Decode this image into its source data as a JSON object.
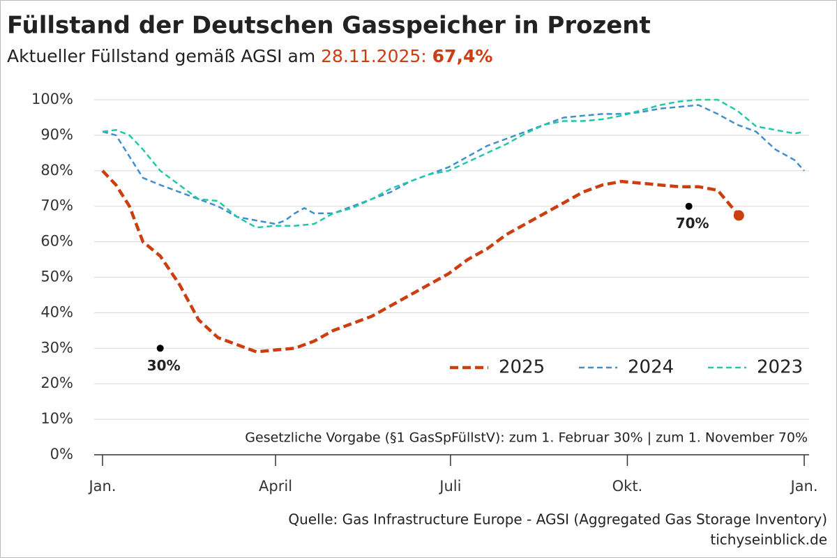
{
  "chart_data": {
    "type": "line",
    "title": "Füllstand der Deutschen Gasspeicher in Prozent",
    "subtitle": {
      "prefix": "Aktueller Füllstand gemäß AGSI am",
      "date": "28.11.2025:",
      "value_label": "67,4%"
    },
    "xticks": [
      {
        "value": 0,
        "label": "Jan."
      },
      {
        "value": 90,
        "label": "April"
      },
      {
        "value": 181,
        "label": "Juli"
      },
      {
        "value": 273,
        "label": "Okt."
      },
      {
        "value": 365,
        "label": "Jan."
      }
    ],
    "xlim": [
      0,
      365
    ],
    "ylim": [
      0,
      100
    ],
    "yticks": [
      {
        "value": 0,
        "label": "0%"
      },
      {
        "value": 10,
        "label": "10%"
      },
      {
        "value": 20,
        "label": "20%"
      },
      {
        "value": 30,
        "label": "30%"
      },
      {
        "value": 40,
        "label": "40%"
      },
      {
        "value": 50,
        "label": "50%"
      },
      {
        "value": 60,
        "label": "60%"
      },
      {
        "value": 70,
        "label": "70%"
      },
      {
        "value": 80,
        "label": "80%"
      },
      {
        "value": 90,
        "label": "90%"
      },
      {
        "value": 100,
        "label": "100%"
      }
    ],
    "grid": true,
    "legend": "lower right",
    "series": [
      {
        "name": "2025",
        "color": "#cc3d10",
        "width": 4.5,
        "x": [
          0,
          7,
          14,
          21,
          30,
          40,
          50,
          60,
          70,
          80,
          90,
          100,
          110,
          120,
          130,
          140,
          150,
          160,
          170,
          180,
          190,
          200,
          210,
          220,
          230,
          240,
          250,
          260,
          270,
          280,
          290,
          300,
          310,
          320,
          331
        ],
        "values": [
          80,
          76,
          70,
          60,
          56,
          48,
          38,
          33,
          31,
          29,
          29.5,
          30,
          32,
          35,
          37,
          39,
          42,
          45,
          48,
          51,
          55,
          58,
          62,
          65,
          68,
          71,
          74,
          76,
          77,
          76.5,
          76,
          75.5,
          75.5,
          74.5,
          67.4
        ]
      },
      {
        "name": "2024",
        "color": "#3f8fcd",
        "width": 2.5,
        "x": [
          0,
          7,
          14,
          21,
          30,
          40,
          50,
          60,
          70,
          80,
          90,
          95,
          100,
          105,
          110,
          120,
          130,
          140,
          150,
          160,
          170,
          180,
          190,
          200,
          210,
          220,
          230,
          240,
          250,
          260,
          270,
          280,
          290,
          300,
          310,
          320,
          330,
          340,
          350,
          360,
          365
        ],
        "values": [
          91,
          90,
          84,
          78,
          76,
          74,
          72,
          70,
          67,
          66,
          65,
          66,
          68,
          69.5,
          68,
          68,
          70,
          72,
          74,
          77,
          79,
          81,
          84,
          87,
          89,
          91,
          93,
          95,
          95.5,
          96,
          96,
          96.5,
          97.5,
          98,
          98.5,
          96,
          93,
          91,
          86,
          83,
          80
        ]
      },
      {
        "name": "2023",
        "color": "#1fc9a5",
        "width": 2.5,
        "x": [
          0,
          7,
          14,
          21,
          30,
          40,
          50,
          60,
          70,
          80,
          90,
          100,
          110,
          120,
          130,
          140,
          150,
          160,
          170,
          180,
          190,
          200,
          210,
          220,
          230,
          240,
          250,
          260,
          270,
          280,
          290,
          300,
          310,
          320,
          330,
          340,
          350,
          360,
          365
        ],
        "values": [
          91,
          91.5,
          90,
          86,
          80,
          76,
          72,
          71.5,
          67,
          64,
          64.5,
          64.5,
          65,
          68,
          69.5,
          72,
          75,
          77,
          79,
          80,
          82.5,
          85,
          87.5,
          90.5,
          93,
          94,
          94,
          94.5,
          95.5,
          97,
          98.5,
          99.5,
          100,
          100,
          97,
          92.5,
          91.5,
          90.5,
          91
        ]
      }
    ],
    "annotations": [
      {
        "text": "30%",
        "x": 30,
        "y": 30
      },
      {
        "text": "70%",
        "x": 305,
        "y": 70
      }
    ],
    "note": "Gesetzliche Vorgabe (§1 GasSpFüllstV): zum 1. Februar 30% | zum 1. November 70%",
    "source": "Quelle: Gas Infrastructure Europe - AGSI (Aggregated Gas Storage Inventory)",
    "site": "tichyseinblick.de"
  }
}
